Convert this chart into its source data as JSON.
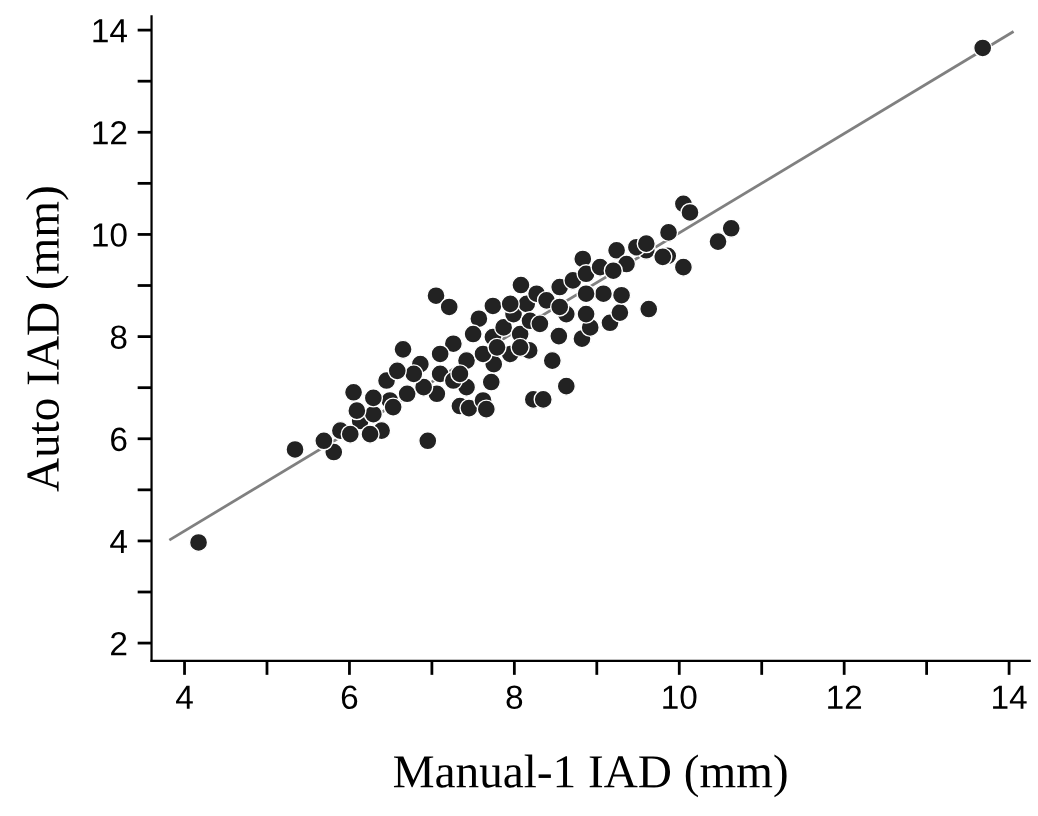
{
  "chart_data": {
    "type": "scatter",
    "xlabel": "Manual-1 IAD (mm)",
    "ylabel": "Auto IAD (mm)",
    "grid": false,
    "legend": false,
    "xlim": [
      3.6,
      14.25
    ],
    "ylim": [
      1.65,
      14.27
    ],
    "xticks": [
      4,
      {
        "value": 5,
        "label": null
      },
      6,
      {
        "value": 7,
        "label": null
      },
      8,
      {
        "value": 9,
        "label": null
      },
      10,
      {
        "value": 11,
        "label": null
      },
      12,
      {
        "value": 13,
        "label": null
      },
      14
    ],
    "yticks": [
      2,
      {
        "value": 3,
        "label": null
      },
      4,
      {
        "value": 5,
        "label": null
      },
      6,
      {
        "value": 7,
        "label": null
      },
      8,
      {
        "value": 9,
        "label": null
      },
      10,
      {
        "value": 11,
        "label": null
      },
      12,
      {
        "value": 13,
        "label": null
      },
      14
    ],
    "series": [
      {
        "type": "line",
        "color": "#808080",
        "x": [
          3.83,
          14.04
        ],
        "values": [
          4.03,
          13.96
        ]
      },
      {
        "color": "#222222",
        "marker": "circle",
        "x": [
          4.17,
          13.68,
          5.34,
          5.81,
          6.05,
          6.65,
          6.95,
          7.05,
          7.21,
          7.34,
          7.45,
          7.62,
          7.66,
          7.57,
          7.74,
          8.08,
          8.23,
          8.35,
          8.63,
          8.46,
          8.54,
          8.82,
          8.92,
          9.16,
          9.28,
          9.3,
          9.63,
          8.83,
          10.05,
          10.13,
          10.47,
          10.63,
          10.05,
          9.86,
          9.87,
          9.6,
          7.75,
          7.72,
          7.95,
          8.18,
          5.69,
          5.89,
          6.13,
          6.39,
          6.29,
          6.49,
          6.45,
          6.7,
          6.86,
          7.06,
          7.1,
          7.26,
          7.42,
          7.5,
          7.74,
          7.87,
          7.99,
          8.15,
          8.27,
          8.39,
          8.55,
          8.63,
          8.71,
          8.87,
          9.04,
          9.08,
          9.24,
          9.36,
          9.48,
          9.6,
          9.8,
          8.07,
          8.19,
          8.31,
          8.55,
          7.95,
          7.42,
          7.26,
          6.9,
          6.78,
          6.58,
          6.29,
          6.09,
          6.01,
          6.25,
          6.53,
          7.1,
          7.34,
          7.62,
          7.79,
          8.87,
          8.87,
          9.2,
          8.07
        ],
        "values": [
          3.97,
          13.65,
          5.79,
          5.74,
          6.91,
          7.75,
          5.96,
          8.8,
          8.58,
          6.64,
          6.6,
          6.75,
          6.58,
          8.35,
          8.6,
          9.01,
          6.77,
          6.77,
          7.03,
          7.53,
          8.01,
          7.96,
          8.18,
          8.27,
          8.47,
          8.81,
          8.54,
          9.52,
          10.6,
          10.43,
          9.86,
          10.12,
          9.36,
          9.58,
          10.04,
          9.69,
          7.46,
          7.11,
          7.66,
          7.73,
          5.96,
          6.16,
          6.35,
          6.16,
          6.48,
          6.75,
          7.14,
          6.88,
          7.46,
          6.88,
          7.27,
          7.86,
          7.53,
          8.05,
          7.99,
          8.18,
          8.44,
          8.64,
          8.84,
          8.71,
          8.97,
          8.44,
          9.1,
          9.23,
          9.36,
          8.84,
          9.69,
          9.42,
          9.75,
          9.82,
          9.56,
          8.05,
          8.31,
          8.25,
          8.58,
          8.64,
          7.01,
          7.14,
          7.01,
          7.27,
          7.33,
          6.8,
          6.55,
          6.09,
          6.09,
          6.62,
          7.66,
          7.27,
          7.66,
          7.79,
          8.84,
          8.44,
          9.29,
          7.79
        ]
      }
    ]
  }
}
